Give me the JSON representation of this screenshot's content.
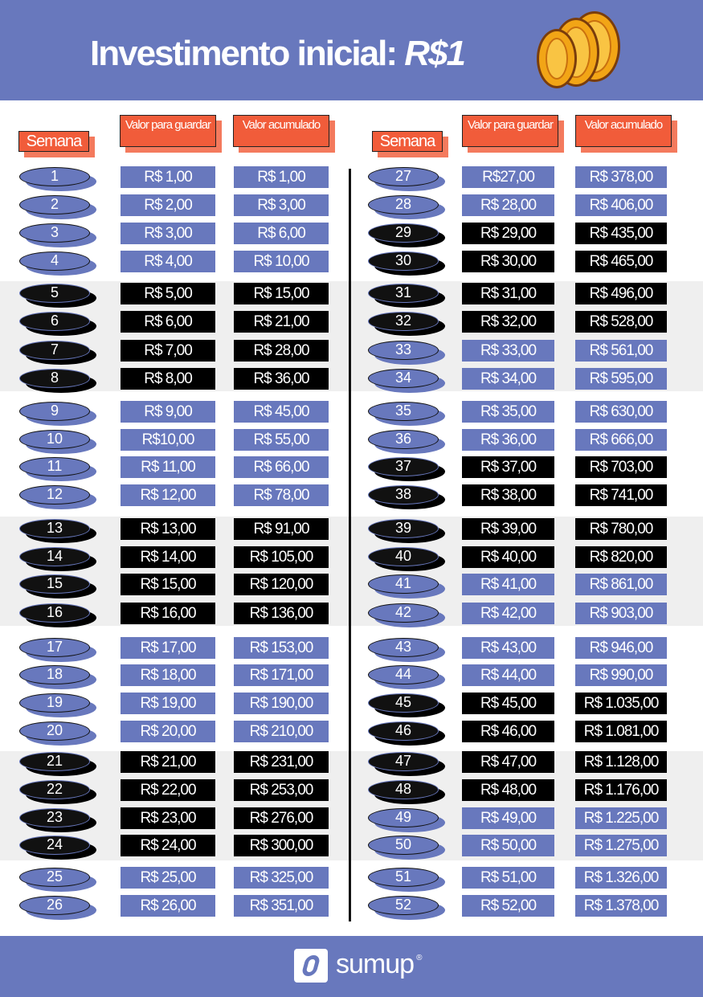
{
  "header": {
    "title": "Investimento inicial: ",
    "title_highlight": "R$1"
  },
  "columns": {
    "week": "Semana",
    "save": "Valor para guardar",
    "total": "Valor acumulado"
  },
  "colors": {
    "purple": "#6878bd",
    "black": "#000000",
    "orange": "#f15c3a"
  },
  "rows": [
    {
      "week": "1",
      "save": "R$ 1,00",
      "total": "R$ 1,00",
      "style": "purple"
    },
    {
      "week": "2",
      "save": "R$ 2,00",
      "total": "R$ 3,00",
      "style": "purple"
    },
    {
      "week": "3",
      "save": "R$ 3,00",
      "total": "R$ 6,00",
      "style": "purple"
    },
    {
      "week": "4",
      "save": "R$ 4,00",
      "total": "R$ 10,00",
      "style": "purple"
    },
    {
      "week": "5",
      "save": "R$ 5,00",
      "total": "R$ 15,00",
      "style": "black"
    },
    {
      "week": "6",
      "save": "R$ 6,00",
      "total": "R$ 21,00",
      "style": "black"
    },
    {
      "week": "7",
      "save": "R$ 7,00",
      "total": "R$ 28,00",
      "style": "black"
    },
    {
      "week": "8",
      "save": "R$ 8,00",
      "total": "R$ 36,00",
      "style": "black"
    },
    {
      "week": "9",
      "save": "R$ 9,00",
      "total": "R$ 45,00",
      "style": "purple"
    },
    {
      "week": "10",
      "save": "R$10,00",
      "total": "R$ 55,00",
      "style": "purple"
    },
    {
      "week": "11",
      "save": "R$ 11,00",
      "total": "R$ 66,00",
      "style": "purple"
    },
    {
      "week": "12",
      "save": "R$ 12,00",
      "total": "R$ 78,00",
      "style": "purple"
    },
    {
      "week": "13",
      "save": "R$ 13,00",
      "total": "R$ 91,00",
      "style": "black"
    },
    {
      "week": "14",
      "save": "R$ 14,00",
      "total": "R$ 105,00",
      "style": "black"
    },
    {
      "week": "15",
      "save": "R$ 15,00",
      "total": "R$ 120,00",
      "style": "black"
    },
    {
      "week": "16",
      "save": "R$ 16,00",
      "total": "R$ 136,00",
      "style": "black"
    },
    {
      "week": "17",
      "save": "R$ 17,00",
      "total": "R$ 153,00",
      "style": "purple"
    },
    {
      "week": "18",
      "save": "R$ 18,00",
      "total": "R$ 171,00",
      "style": "purple"
    },
    {
      "week": "19",
      "save": "R$ 19,00",
      "total": "R$ 190,00",
      "style": "purple"
    },
    {
      "week": "20",
      "save": "R$ 20,00",
      "total": "R$ 210,00",
      "style": "purple"
    },
    {
      "week": "21",
      "save": "R$ 21,00",
      "total": "R$ 231,00",
      "style": "black"
    },
    {
      "week": "22",
      "save": "R$ 22,00",
      "total": "R$ 253,00",
      "style": "black"
    },
    {
      "week": "23",
      "save": "R$ 23,00",
      "total": "R$ 276,00",
      "style": "black"
    },
    {
      "week": "24",
      "save": "R$ 24,00",
      "total": "R$ 300,00",
      "style": "black"
    },
    {
      "week": "25",
      "save": "R$ 25,00",
      "total": "R$ 325,00",
      "style": "purple"
    },
    {
      "week": "26",
      "save": "R$ 26,00",
      "total": "R$ 351,00",
      "style": "purple"
    },
    {
      "week": "27",
      "save": "R$27,00",
      "total": "R$ 378,00",
      "style": "purple"
    },
    {
      "week": "28",
      "save": "R$ 28,00",
      "total": "R$ 406,00",
      "style": "purple"
    },
    {
      "week": "29",
      "save": "R$ 29,00",
      "total": "R$ 435,00",
      "style": "black"
    },
    {
      "week": "30",
      "save": "R$ 30,00",
      "total": "R$ 465,00",
      "style": "black"
    },
    {
      "week": "31",
      "save": "R$ 31,00",
      "total": "R$ 496,00",
      "style": "black"
    },
    {
      "week": "32",
      "save": "R$ 32,00",
      "total": "R$ 528,00",
      "style": "black"
    },
    {
      "week": "33",
      "save": "R$ 33,00",
      "total": "R$ 561,00",
      "style": "purple"
    },
    {
      "week": "34",
      "save": "R$ 34,00",
      "total": "R$ 595,00",
      "style": "purple"
    },
    {
      "week": "35",
      "save": "R$ 35,00",
      "total": "R$ 630,00",
      "style": "purple"
    },
    {
      "week": "36",
      "save": "R$ 36,00",
      "total": "R$ 666,00",
      "style": "purple"
    },
    {
      "week": "37",
      "save": "R$ 37,00",
      "total": "R$ 703,00",
      "style": "black"
    },
    {
      "week": "38",
      "save": "R$ 38,00",
      "total": "R$ 741,00",
      "style": "black"
    },
    {
      "week": "39",
      "save": "R$ 39,00",
      "total": "R$ 780,00",
      "style": "black"
    },
    {
      "week": "40",
      "save": "R$ 40,00",
      "total": "R$ 820,00",
      "style": "black"
    },
    {
      "week": "41",
      "save": "R$ 41,00",
      "total": "R$ 861,00",
      "style": "purple"
    },
    {
      "week": "42",
      "save": "R$ 42,00",
      "total": "R$ 903,00",
      "style": "purple"
    },
    {
      "week": "43",
      "save": "R$ 43,00",
      "total": "R$ 946,00",
      "style": "purple"
    },
    {
      "week": "44",
      "save": "R$ 44,00",
      "total": "R$ 990,00",
      "style": "purple"
    },
    {
      "week": "45",
      "save": "R$ 45,00",
      "total": "R$ 1.035,00",
      "style": "black"
    },
    {
      "week": "46",
      "save": "R$ 46,00",
      "total": "R$ 1.081,00",
      "style": "black"
    },
    {
      "week": "47",
      "save": "R$ 47,00",
      "total": "R$ 1.128,00",
      "style": "black"
    },
    {
      "week": "48",
      "save": "R$ 48,00",
      "total": "R$ 1.176,00",
      "style": "black"
    },
    {
      "week": "49",
      "save": "R$ 49,00",
      "total": "R$ 1.225,00",
      "style": "purple"
    },
    {
      "week": "50",
      "save": "R$ 50,00",
      "total": "R$ 1.275,00",
      "style": "purple"
    },
    {
      "week": "51",
      "save": "R$ 51,00",
      "total": "R$ 1.326,00",
      "style": "purple"
    },
    {
      "week": "52",
      "save": "R$ 52,00",
      "total": "R$ 1.378,00",
      "style": "purple"
    }
  ],
  "footer": {
    "brand": "sumup",
    "registered": "®"
  }
}
